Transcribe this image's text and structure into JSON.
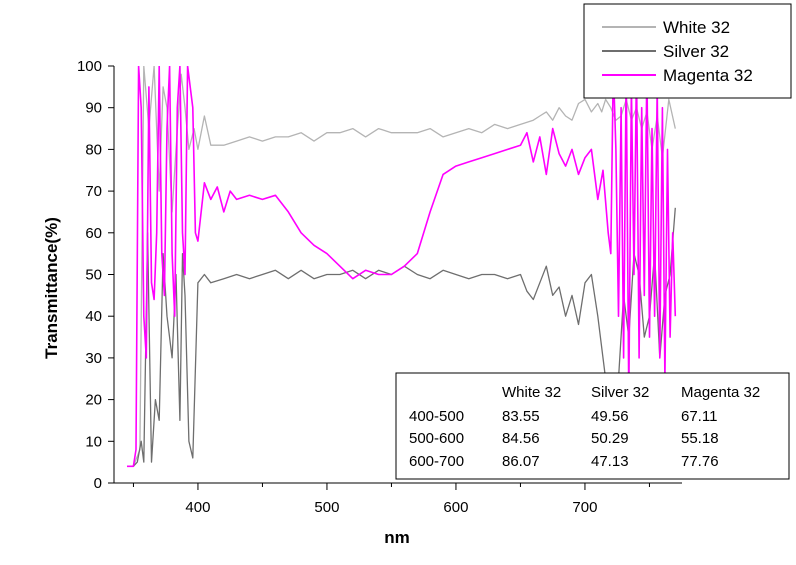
{
  "chart_data": {
    "type": "line",
    "title": "",
    "xlabel": "nm",
    "ylabel": "Transmittance(%)",
    "xlim": [
      345,
      778
    ],
    "ylim": [
      0,
      100
    ],
    "xticks": [
      400,
      500,
      600,
      700
    ],
    "yticks": [
      0,
      10,
      20,
      30,
      40,
      50,
      60,
      70,
      80,
      90,
      100
    ],
    "grid": false,
    "legend_position": "top-right",
    "series": [
      {
        "name": "White 32",
        "color": "#b4b4b4",
        "x": [
          345,
          350,
          355,
          358,
          362,
          366,
          370,
          373,
          376,
          380,
          383,
          387,
          390,
          393,
          397,
          400,
          405,
          410,
          420,
          430,
          440,
          450,
          460,
          470,
          480,
          490,
          500,
          510,
          520,
          530,
          540,
          550,
          560,
          570,
          580,
          590,
          600,
          610,
          620,
          630,
          640,
          650,
          660,
          665,
          670,
          675,
          680,
          685,
          690,
          695,
          700,
          705,
          710,
          713,
          716,
          720,
          724,
          728,
          732,
          736,
          740,
          744,
          748,
          752,
          756,
          760,
          765,
          770
        ],
        "y": [
          4,
          4,
          8,
          100,
          85,
          100,
          70,
          95,
          90,
          65,
          80,
          98,
          90,
          80,
          85,
          80,
          88,
          81,
          81,
          82,
          83,
          82,
          83,
          83,
          84,
          82,
          84,
          84,
          85,
          83,
          85,
          84,
          84,
          84,
          85,
          83,
          84,
          85,
          84,
          86,
          85,
          86,
          87,
          88,
          89,
          87,
          90,
          88,
          87,
          91,
          92,
          89,
          91,
          89,
          92,
          90,
          87,
          88,
          92,
          87,
          90,
          85,
          89,
          80,
          88,
          78,
          92,
          85
        ]
      },
      {
        "name": "Silver 32",
        "color": "#6e6e6e",
        "x": [
          345,
          350,
          353,
          356,
          358,
          361,
          364,
          367,
          370,
          373,
          376,
          380,
          383,
          386,
          388,
          390,
          393,
          396,
          400,
          405,
          410,
          420,
          430,
          440,
          450,
          460,
          470,
          480,
          490,
          500,
          510,
          520,
          530,
          540,
          550,
          560,
          570,
          580,
          590,
          600,
          610,
          620,
          630,
          640,
          650,
          655,
          660,
          665,
          670,
          675,
          680,
          685,
          690,
          695,
          700,
          705,
          710,
          714,
          718,
          722,
          726,
          730,
          734,
          738,
          742,
          746,
          750,
          754,
          758,
          762,
          766,
          770
        ],
        "y": [
          4,
          4,
          5,
          10,
          5,
          60,
          5,
          20,
          15,
          55,
          40,
          30,
          50,
          15,
          55,
          45,
          10,
          6,
          48,
          50,
          48,
          49,
          50,
          49,
          50,
          51,
          49,
          51,
          49,
          50,
          50,
          51,
          49,
          51,
          50,
          52,
          50,
          49,
          51,
          50,
          49,
          50,
          50,
          49,
          50,
          46,
          44,
          48,
          52,
          45,
          47,
          40,
          45,
          38,
          48,
          50,
          40,
          30,
          20,
          15,
          25,
          45,
          35,
          55,
          50,
          35,
          40,
          55,
          30,
          45,
          50,
          66
        ]
      },
      {
        "name": "Magenta 32",
        "color": "#ff00ff",
        "x": [
          345,
          350,
          352,
          354,
          356,
          358,
          360,
          362,
          364,
          366,
          368,
          370,
          372,
          374,
          376,
          378,
          380,
          382,
          384,
          386,
          388,
          390,
          392,
          394,
          396,
          398,
          400,
          405,
          410,
          415,
          420,
          425,
          430,
          440,
          450,
          460,
          470,
          480,
          490,
          500,
          510,
          520,
          530,
          540,
          550,
          560,
          570,
          580,
          590,
          600,
          610,
          620,
          630,
          640,
          650,
          655,
          660,
          665,
          670,
          675,
          680,
          685,
          690,
          695,
          700,
          705,
          710,
          714,
          718,
          720,
          722,
          724,
          726,
          728,
          730,
          732,
          734,
          736,
          738,
          740,
          742,
          744,
          746,
          748,
          750,
          752,
          754,
          756,
          758,
          760,
          762,
          764,
          766,
          768,
          770
        ],
        "y": [
          4,
          4,
          8,
          100,
          90,
          40,
          30,
          95,
          48,
          44,
          60,
          100,
          55,
          45,
          85,
          100,
          55,
          40,
          90,
          100,
          60,
          50,
          100,
          95,
          90,
          60,
          58,
          72,
          68,
          71,
          65,
          70,
          68,
          69,
          68,
          69,
          65,
          60,
          57,
          55,
          52,
          49,
          51,
          50,
          50,
          52,
          55,
          65,
          74,
          76,
          77,
          78,
          79,
          80,
          81,
          84,
          77,
          83,
          74,
          85,
          79,
          76,
          80,
          74,
          78,
          80,
          68,
          75,
          60,
          55,
          100,
          80,
          40,
          90,
          30,
          100,
          20,
          95,
          50,
          100,
          30,
          90,
          45,
          100,
          35,
          85,
          40,
          95,
          30,
          90,
          25,
          80,
          35,
          60,
          40
        ]
      }
    ],
    "table": {
      "headers": [
        "",
        "White 32",
        "Silver 32",
        "Magenta 32"
      ],
      "rows": [
        [
          "400-500",
          "83.55",
          "49.56",
          "67.11"
        ],
        [
          "500-600",
          "84.56",
          "50.29",
          "55.18"
        ],
        [
          "600-700",
          "86.07",
          "47.13",
          "77.76"
        ]
      ]
    }
  }
}
